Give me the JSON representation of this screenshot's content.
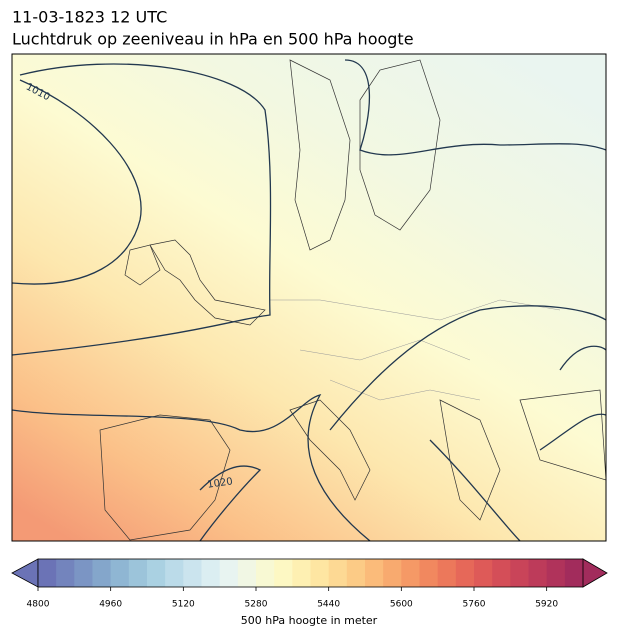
{
  "header": {
    "date": "11-03-1823 12 UTC",
    "title": "Luchtdruk op zeeniveau in hPa en 500 hPa hoogte"
  },
  "map": {
    "contour_labels": [
      "1010",
      "1020"
    ]
  },
  "colorbar": {
    "label": "500 hPa hoogte in meter",
    "lim": [
      4800,
      6000
    ],
    "ticks": [
      4800,
      4960,
      5120,
      5280,
      5440,
      5600,
      5760,
      5920
    ],
    "colors": [
      "#6b73b6",
      "#7384bd",
      "#7b95c4",
      "#84a6cb",
      "#8fb6d3",
      "#9cc4da",
      "#aad1e2",
      "#bbdbe9",
      "#cbe4ee",
      "#dbeef2",
      "#e8f4f1",
      "#f1f7e4",
      "#f8f9d3",
      "#fdf8c3",
      "#fef0b2",
      "#fee6a2",
      "#fdd994",
      "#fccb86",
      "#fbbb7a",
      "#f8aa6f",
      "#f59966",
      "#f1885f",
      "#ec785b",
      "#e66859",
      "#de5a58",
      "#d44e58",
      "#c94459",
      "#bd3b5a",
      "#b0335b",
      "#a22c5c"
    ]
  }
}
